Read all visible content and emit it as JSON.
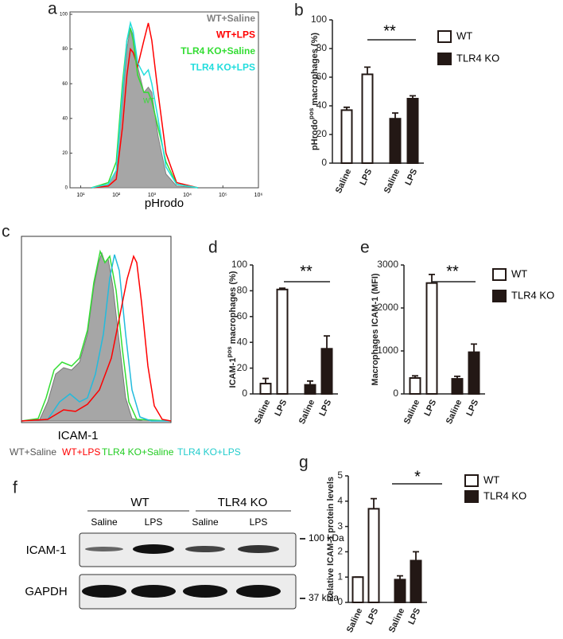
{
  "chart_data": [
    {
      "type": "line",
      "panel": "a",
      "x_label": "pHrodo",
      "x_scale": "log",
      "xlim": [
        5,
        1000000
      ],
      "xticks": [
        {
          "value": 10,
          "label": "10¹"
        },
        {
          "value": 100,
          "label": "10²"
        },
        {
          "value": 1000,
          "label": "10³"
        },
        {
          "value": 10000,
          "label": "10⁴"
        },
        {
          "value": 100000,
          "label": "10⁵"
        },
        {
          "value": 1000000,
          "label": "10⁶"
        }
      ],
      "ylim": [
        0,
        100
      ],
      "yticks": [
        0,
        20,
        40,
        60,
        80,
        100
      ],
      "x": [
        20,
        60,
        100,
        150,
        200,
        250,
        300,
        400,
        600,
        800,
        1000,
        1500,
        2500,
        5000,
        20000
      ],
      "series": [
        {
          "name": "WT+Saline",
          "color": "#808080",
          "fill": "#a6a6a6",
          "values": [
            0,
            2,
            10,
            50,
            80,
            92,
            88,
            70,
            55,
            58,
            55,
            30,
            8,
            1,
            0
          ]
        },
        {
          "name": "WT+LPS",
          "color": "#ff0000",
          "values": [
            0,
            1,
            5,
            35,
            65,
            80,
            78,
            70,
            85,
            95,
            85,
            55,
            20,
            3,
            0
          ]
        },
        {
          "name": "TLR4 KO+Saline",
          "color": "#33dd33",
          "values": [
            0,
            3,
            15,
            60,
            85,
            92,
            85,
            65,
            55,
            55,
            50,
            35,
            15,
            2,
            0
          ]
        },
        {
          "name": "TLR4 KO+LPS",
          "color": "#22dddd",
          "values": [
            0,
            2,
            10,
            55,
            85,
            95,
            90,
            72,
            65,
            68,
            60,
            40,
            12,
            2,
            0
          ]
        }
      ],
      "annotation": "WT"
    },
    {
      "type": "bar",
      "panel": "b",
      "ylabel": [
        "pHrodo",
        "pos",
        " macrophages (%)"
      ],
      "categories": [
        "Saline",
        "LPS"
      ],
      "series": [
        {
          "name": "WT",
          "color": "#ffffff",
          "values": [
            37,
            62
          ],
          "errors": [
            2,
            5
          ]
        },
        {
          "name": "TLR4 KO",
          "color": "#231815",
          "values": [
            31,
            45
          ],
          "errors": [
            4,
            2
          ]
        }
      ],
      "ylim": [
        0,
        100
      ],
      "yticks": [
        0,
        20,
        40,
        60,
        80,
        100
      ],
      "annotation": "**",
      "legend": true
    },
    {
      "type": "bar",
      "panel": "d",
      "ylabel": [
        "ICAM-1",
        "pos",
        " macrophages (%)"
      ],
      "categories": [
        "Saline",
        "LPS"
      ],
      "series": [
        {
          "name": "WT",
          "color": "#ffffff",
          "values": [
            8,
            81
          ],
          "errors": [
            4,
            1
          ]
        },
        {
          "name": "TLR4 KO",
          "color": "#231815",
          "values": [
            7,
            35
          ],
          "errors": [
            3,
            10
          ]
        }
      ],
      "ylim": [
        0,
        100
      ],
      "yticks": [
        0,
        20,
        40,
        60,
        80,
        100
      ],
      "annotation": "**",
      "legend": false
    },
    {
      "type": "bar",
      "panel": "e",
      "ylabel": [
        "Macrophages ICAM-1 (MFI)"
      ],
      "categories": [
        "Saline",
        "LPS"
      ],
      "series": [
        {
          "name": "WT",
          "color": "#ffffff",
          "values": [
            370,
            2580
          ],
          "errors": [
            50,
            200
          ]
        },
        {
          "name": "TLR4 KO",
          "color": "#231815",
          "values": [
            350,
            970
          ],
          "errors": [
            60,
            190
          ]
        }
      ],
      "ylim": [
        0,
        3000
      ],
      "yticks": [
        0,
        1000,
        2000,
        3000
      ],
      "annotation": "**",
      "legend": true
    },
    {
      "type": "bar",
      "panel": "g",
      "ylabel": [
        "Relative ICAM-1 protein levels"
      ],
      "categories": [
        "Saline",
        "LPS"
      ],
      "series": [
        {
          "name": "WT",
          "color": "#ffffff",
          "values": [
            1,
            3.7
          ],
          "errors": [
            0,
            0.4
          ]
        },
        {
          "name": "TLR4 KO",
          "color": "#231815",
          "values": [
            0.9,
            1.65
          ],
          "errors": [
            0.15,
            0.35
          ]
        }
      ],
      "ylim": [
        0,
        5
      ],
      "yticks": [
        0,
        1,
        2,
        3,
        4,
        5
      ],
      "annotation": "*",
      "legend": true
    }
  ],
  "flow_c": {
    "panel": "c",
    "x_label": "ICAM-1",
    "legend": [
      "WT+Saline",
      "WT+LPS",
      "TLR4 KO+Saline",
      "TLR4 KO+LPS"
    ]
  },
  "blot": {
    "panel": "f",
    "groups": [
      "WT",
      "TLR4 KO"
    ],
    "lanes": [
      "Saline",
      "LPS",
      "Saline",
      "LPS"
    ],
    "rows": [
      "ICAM-1",
      "GAPDH"
    ],
    "markers": [
      "100 kDa",
      "37 kDa"
    ]
  }
}
